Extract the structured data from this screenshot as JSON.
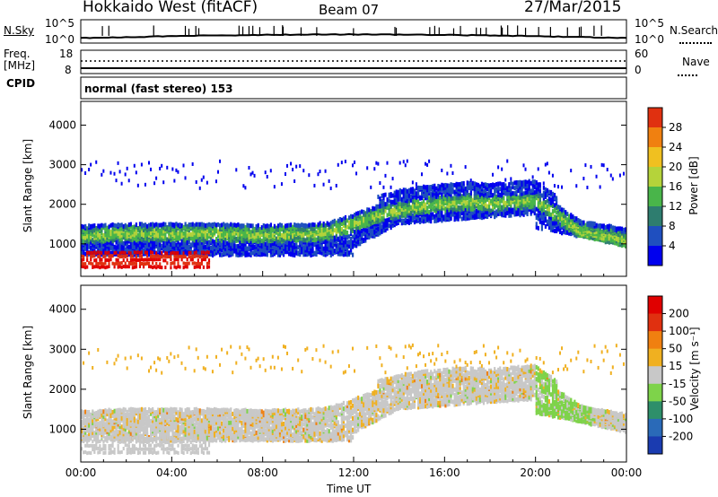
{
  "header": {
    "station": "Hokkaido West (fitACF)",
    "beam": "Beam 07",
    "date": "27/Mar/2015"
  },
  "noise_panel": {
    "left_label": "N.Sky",
    "left_ticks": [
      "10^5",
      "10^0"
    ],
    "right_ticks": [
      "10^5",
      "10^0"
    ],
    "right_label": "N.Search"
  },
  "freq_panel": {
    "label_line1": "Freq.",
    "label_line2": "[MHz]",
    "left_ticks": [
      "18",
      "8"
    ],
    "right_ticks": [
      "60",
      "0"
    ],
    "right_label": "Nave"
  },
  "cpid_panel": {
    "label": "CPID",
    "mode_text": "normal (fast stereo) 153"
  },
  "x_axis": {
    "title": "Time UT",
    "ticks": [
      "00:00",
      "04:00",
      "08:00",
      "12:00",
      "16:00",
      "20:00",
      "00:00"
    ]
  },
  "power_panel": {
    "ylabel": "Slant Range [km]",
    "yticks": [
      "4000",
      "3000",
      "2000",
      "1000"
    ],
    "colorbar_label": "Power [dB]",
    "colorbar_ticks": [
      "28",
      "24",
      "20",
      "16",
      "12",
      "8",
      "4"
    ],
    "colors": [
      "#0000ee",
      "#1f4fbf",
      "#2e7d6f",
      "#49b54a",
      "#b5d33a",
      "#f0c020",
      "#f08010",
      "#e03010",
      "#e00000"
    ]
  },
  "velocity_panel": {
    "ylabel": "Slant Range [km]",
    "yticks": [
      "4000",
      "3000",
      "2000",
      "1000"
    ],
    "colorbar_label": "Velocity [m s⁻¹]",
    "colorbar_ticks": [
      "200",
      "100",
      "50",
      "15",
      "-15",
      "-50",
      "-100",
      "-200"
    ],
    "colors": [
      "#1a3bb0",
      "#2a6ab8",
      "#2e8f6a",
      "#7ed34a",
      "#c8c8c8",
      "#f0b020",
      "#f08010",
      "#e03010",
      "#e00000"
    ]
  },
  "chart_data": {
    "type": "heatmap",
    "x_range_hours": [
      0,
      24
    ],
    "y_range_km": [
      180,
      4600
    ],
    "echo_band_center_km": [
      [
        0,
        1200
      ],
      [
        2,
        1250
      ],
      [
        4,
        1250
      ],
      [
        6,
        1250
      ],
      [
        8,
        1220
      ],
      [
        10,
        1250
      ],
      [
        11,
        1300
      ],
      [
        12,
        1500
      ],
      [
        13,
        1700
      ],
      [
        14,
        1850
      ],
      [
        15,
        1950
      ],
      [
        16,
        2000
      ],
      [
        17,
        2050
      ],
      [
        18,
        2000
      ],
      [
        19,
        2050
      ],
      [
        20,
        2100
      ],
      [
        21,
        1700
      ],
      [
        22,
        1300
      ],
      [
        23,
        1200
      ],
      [
        24,
        1100
      ]
    ]
  }
}
